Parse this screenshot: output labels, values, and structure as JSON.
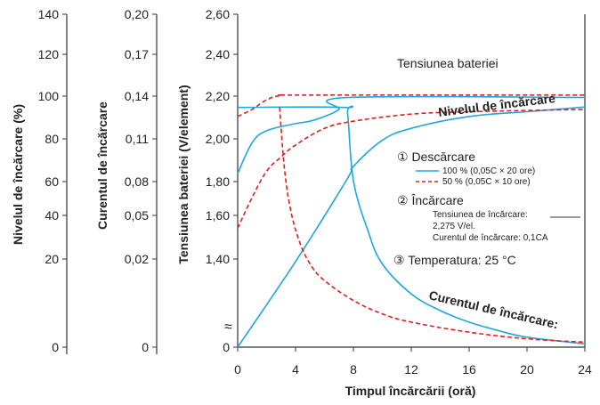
{
  "chart_data": {
    "type": "line",
    "xlabel": "Timpul încărcării (oră)",
    "x_ticks": [
      "0",
      "4",
      "8",
      "12",
      "16",
      "20",
      "24"
    ],
    "xlim": [
      0,
      24
    ],
    "y_axes": [
      {
        "id": "level",
        "label": "Nivelul de încărcare (%)",
        "ticks": [
          "0",
          "20",
          "40",
          "60",
          "80",
          "100",
          "120",
          "140"
        ],
        "ylim": [
          0,
          140
        ]
      },
      {
        "id": "current",
        "label": "Curentul de încărcare",
        "ticks": [
          "0",
          "0,02",
          "0,05",
          "0,08",
          "0,11",
          "0,14",
          "0,17",
          "0,20"
        ],
        "ylim": [
          0,
          0.2
        ]
      },
      {
        "id": "voltage",
        "label": "Tensiunea bateriei (V/element)",
        "ticks": [
          "0",
          "1,40",
          "1,60",
          "1,80",
          "2,00",
          "2,20",
          "2,40",
          "2,60"
        ],
        "ylim": [
          1.2,
          2.6
        ]
      }
    ],
    "series": [
      {
        "name": "100 % (0,05C × 20 ore)",
        "color": "#1ea7dc",
        "style": "solid",
        "curves": {
          "voltage": [
            [
              0,
              1.93
            ],
            [
              1,
              2.06
            ],
            [
              2,
              2.11
            ],
            [
              4,
              2.14
            ],
            [
              5,
              2.15
            ],
            [
              6,
              2.17
            ],
            [
              7,
              2.2
            ],
            [
              7.6,
              2.25
            ],
            [
              24,
              2.25
            ]
          ],
          "level": [
            [
              0,
              0
            ],
            [
              4,
              36
            ],
            [
              7.5,
              70
            ],
            [
              8,
              76
            ],
            [
              10,
              87
            ],
            [
              12,
              92
            ],
            [
              16,
              97
            ],
            [
              20,
              99
            ],
            [
              24,
              101
            ]
          ],
          "current": [
            [
              0,
              0.144
            ],
            [
              7.3,
              0.144
            ],
            [
              7.6,
              0.14
            ],
            [
              8,
              0.1
            ],
            [
              9,
              0.07
            ],
            [
              10,
              0.05
            ],
            [
              12,
              0.032
            ],
            [
              14,
              0.022
            ],
            [
              16,
              0.015
            ],
            [
              18,
              0.01
            ],
            [
              20,
              0.006
            ],
            [
              24,
              0.002
            ]
          ]
        }
      },
      {
        "name": "50 % (0,05C × 10 ore)",
        "color": "#e02020",
        "style": "dashed",
        "curves": {
          "voltage": [
            [
              0,
              2.17
            ],
            [
              1,
              2.2
            ],
            [
              2,
              2.24
            ],
            [
              3,
              2.258
            ],
            [
              5,
              2.26
            ],
            [
              24,
              2.26
            ]
          ],
          "level": [
            [
              0,
              50
            ],
            [
              1,
              63
            ],
            [
              2,
              74
            ],
            [
              3,
              80
            ],
            [
              4,
              85
            ],
            [
              6,
              92
            ],
            [
              8,
              95
            ],
            [
              12,
              98
            ],
            [
              16,
              99
            ],
            [
              24,
              100
            ]
          ],
          "current": [
            [
              2.9,
              0.144
            ],
            [
              3.2,
              0.11
            ],
            [
              3.6,
              0.085
            ],
            [
              4.2,
              0.065
            ],
            [
              5,
              0.05
            ],
            [
              6,
              0.04
            ],
            [
              8,
              0.028
            ],
            [
              10,
              0.02
            ],
            [
              12,
              0.015
            ],
            [
              16,
              0.009
            ],
            [
              20,
              0.005
            ],
            [
              24,
              0.003
            ]
          ]
        }
      }
    ],
    "annotations": {
      "voltage_curve": "Tensiunea bateriei",
      "level_curve": "Nivelul de încărcare",
      "current_curve": "Curentul de încărcare:",
      "discharge_heading": "① Descărcare",
      "charge_heading": "② Încărcare",
      "charge_voltage_1": "Tensiunea de încărcare:",
      "charge_voltage_2": "2,275 V/el.",
      "charge_current": "Curentul de încărcare: 0,1CA",
      "temperature": "③ Temperatura: 25 °C",
      "axis_break": "≈"
    }
  }
}
